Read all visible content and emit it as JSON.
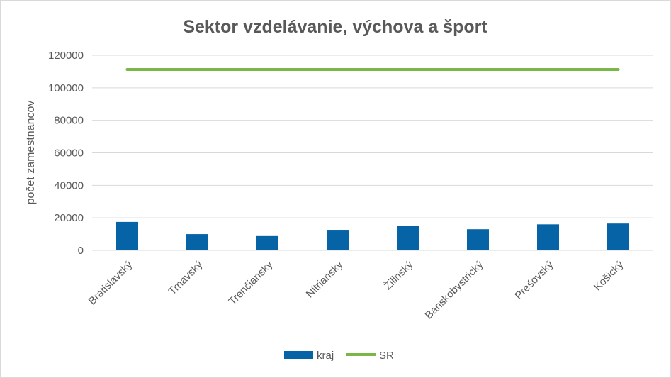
{
  "chart_data": {
    "type": "bar",
    "title": "Sektor vzdelávanie, výchova a šport",
    "xlabel": "",
    "ylabel": "počet zamestnancov",
    "ylim": [
      0,
      120000
    ],
    "yticks": [
      0,
      20000,
      40000,
      60000,
      80000,
      100000,
      120000
    ],
    "grid": true,
    "legend_position": "bottom",
    "categories": [
      "Bratislavský",
      "Trnavský",
      "Trenčiansky",
      "Nitriansky",
      "Žilinský",
      "Banskobystrický",
      "Prešovský",
      "Košický"
    ],
    "series": [
      {
        "name": "kraj",
        "type": "bar",
        "color": "#0563a6",
        "values": [
          17500,
          10000,
          8800,
          12200,
          14900,
          13000,
          16000,
          16500
        ]
      },
      {
        "name": "SR",
        "type": "line",
        "color": "#7ab648",
        "values": [
          111300,
          111300,
          111300,
          111300,
          111300,
          111300,
          111300,
          111300
        ]
      }
    ]
  }
}
